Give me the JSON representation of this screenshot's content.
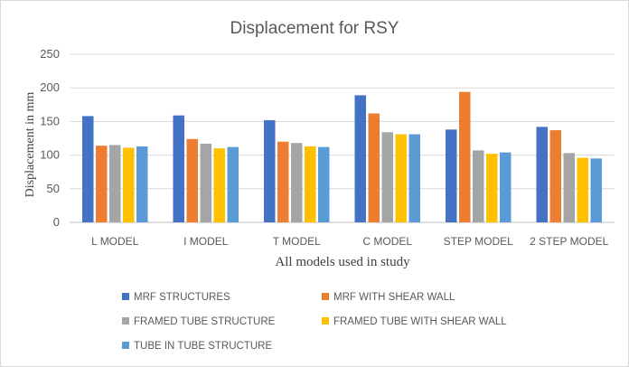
{
  "chart_data": {
    "type": "bar",
    "title": "Displacement  for RSY",
    "xlabel": "All models used in study",
    "ylabel": "Displacement  in mm",
    "ylim": [
      0,
      250
    ],
    "yticks": [
      0,
      50,
      100,
      150,
      200,
      250
    ],
    "grid": true,
    "legend_position": "bottom",
    "categories": [
      "L MODEL",
      "I MODEL",
      "T MODEL",
      "C MODEL",
      "STEP MODEL",
      "2 STEP MODEL"
    ],
    "series": [
      {
        "name": "MRF STRUCTURES",
        "color": "#4472c4",
        "values": [
          158,
          159,
          152,
          189,
          138,
          142
        ]
      },
      {
        "name": "MRF WITH SHEAR WALL",
        "color": "#ed7d31",
        "values": [
          114,
          124,
          120,
          162,
          194,
          137
        ]
      },
      {
        "name": "FRAMED TUBE STRUCTURE",
        "color": "#a5a5a5",
        "values": [
          115,
          117,
          118,
          134,
          107,
          103
        ]
      },
      {
        "name": "FRAMED TUBE WITH SHEAR WALL",
        "color": "#ffc000",
        "values": [
          111,
          110,
          113,
          131,
          102,
          96
        ]
      },
      {
        "name": "TUBE IN TUBE STRUCTURE",
        "color": "#5b9bd5",
        "values": [
          113,
          112,
          112,
          131,
          104,
          95
        ]
      }
    ]
  }
}
